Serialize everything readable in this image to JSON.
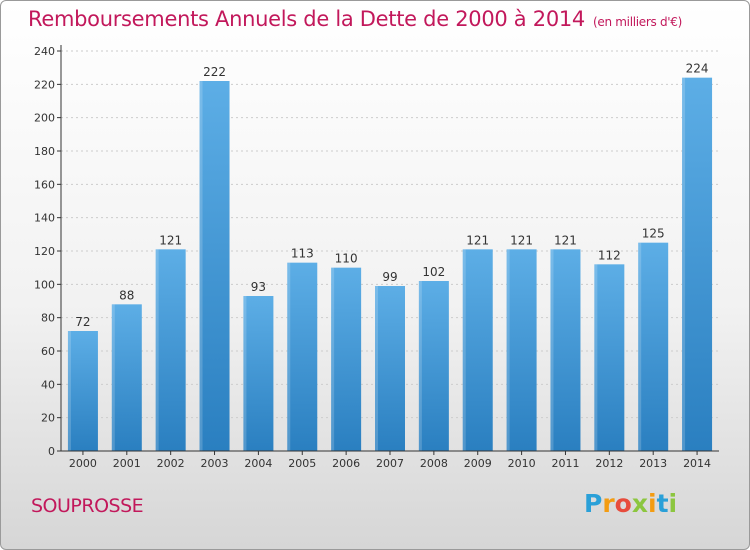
{
  "title": "Remboursements Annuels de la Dette de 2000 à 2014",
  "unit": "(en milliers d'€)",
  "commune": "SOUPROSSE",
  "brand": {
    "letters": [
      {
        "ch": "P",
        "color": "#2aa0d8"
      },
      {
        "ch": "r",
        "color": "#f39c12"
      },
      {
        "ch": "o",
        "color": "#e74c3c"
      },
      {
        "ch": "x",
        "color": "#8cc63f"
      },
      {
        "ch": "i",
        "color": "#f39c12"
      },
      {
        "ch": "t",
        "color": "#2aa0d8"
      },
      {
        "ch": "i",
        "color": "#8cc63f"
      }
    ]
  },
  "colors": {
    "bar_light": "#5daee6",
    "bar_dark": "#2a7fc0",
    "axis": "#333333",
    "grid": "#cccccc"
  },
  "chart_data": {
    "type": "bar",
    "categories": [
      "2000",
      "2001",
      "2002",
      "2003",
      "2004",
      "2005",
      "2006",
      "2007",
      "2008",
      "2009",
      "2010",
      "2011",
      "2012",
      "2013",
      "2014"
    ],
    "values": [
      72,
      88,
      121,
      222,
      93,
      113,
      110,
      99,
      102,
      121,
      121,
      121,
      112,
      125,
      224
    ],
    "ylim": [
      0,
      240
    ],
    "yticks": [
      0,
      20,
      40,
      60,
      80,
      100,
      120,
      140,
      160,
      180,
      200,
      220,
      240
    ],
    "grid": true
  }
}
